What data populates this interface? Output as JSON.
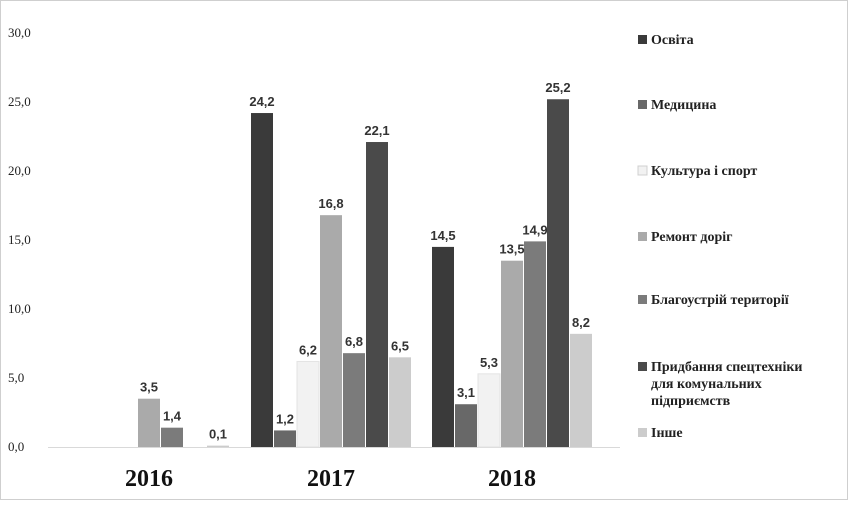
{
  "chart_data": {
    "type": "bar",
    "categories": [
      "2016",
      "2017",
      "2018"
    ],
    "ylim": [
      0,
      30
    ],
    "yticks": [
      "0,0",
      "5,0",
      "10,0",
      "15,0",
      "20,0",
      "25,0",
      "30,0"
    ],
    "ytick_values": [
      0,
      5,
      10,
      15,
      20,
      25,
      30
    ],
    "grid": false,
    "legend_position": "right",
    "series": [
      {
        "name": "Освіта",
        "color": "#3a3a3a",
        "values": [
          0,
          24.2,
          14.5
        ],
        "labels": [
          "",
          "24,2",
          "14,5"
        ]
      },
      {
        "name": "Медицина",
        "color": "#686868",
        "values": [
          0,
          1.2,
          3.1
        ],
        "labels": [
          "",
          "1,2",
          "3,1"
        ]
      },
      {
        "name": "Культура і спорт",
        "color": "#f2f2f2",
        "values": [
          0,
          6.2,
          5.3
        ],
        "labels": [
          "",
          "6,2",
          "5,3"
        ]
      },
      {
        "name": "Ремонт доріг",
        "color": "#aaaaaa",
        "values": [
          3.5,
          16.8,
          13.5
        ],
        "labels": [
          "3,5",
          "16,8",
          "13,5"
        ]
      },
      {
        "name": "Благоустрій території",
        "color": "#7b7b7b",
        "values": [
          1.4,
          6.8,
          14.9
        ],
        "labels": [
          "1,4",
          "6,8",
          "14,9"
        ]
      },
      {
        "name": "Придбання спецтехніки для комунальних підприємств",
        "name_lines": [
          "Придбання спецтехніки",
          "для комунальних",
          "підприємств"
        ],
        "color": "#4a4a4a",
        "values": [
          0,
          22.1,
          25.2
        ],
        "labels": [
          "",
          "22,1",
          "25,2"
        ]
      },
      {
        "name": "Інше",
        "color": "#cccccc",
        "values": [
          0.1,
          6.5,
          8.2
        ],
        "labels": [
          "0,1",
          "6,5",
          "8,2"
        ]
      }
    ]
  }
}
